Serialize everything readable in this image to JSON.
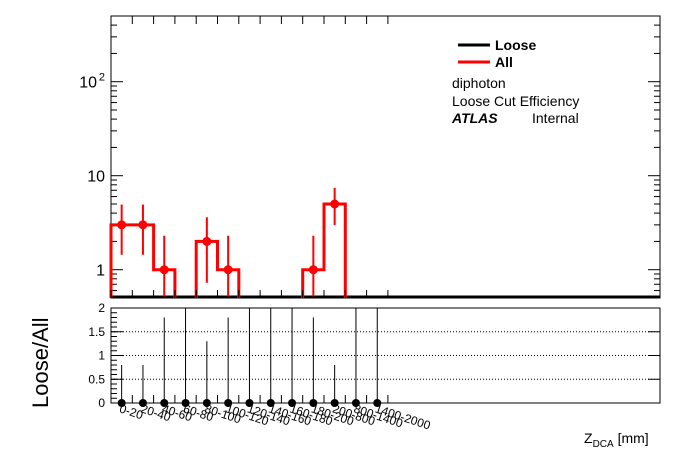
{
  "chart_data": [
    {
      "type": "histogram",
      "panel": "upper",
      "yscale": "log",
      "ylim": [
        0.5,
        500
      ],
      "ytick_labels": [
        {
          "value": 1,
          "label": "1"
        },
        {
          "value": 10,
          "label": "10"
        },
        {
          "value": 100,
          "label": "10",
          "exp": "2"
        }
      ],
      "categories": [
        "0-20",
        "20-40",
        "40-60",
        "60-80",
        "80-100",
        "100-120",
        "120-140",
        "140-160",
        "160-180",
        "180-200",
        "200-800",
        "800-1400",
        "1400-2000"
      ],
      "series": [
        {
          "name": "Loose",
          "color": "#000000",
          "values": [
            0,
            0,
            0,
            0,
            0,
            0,
            0,
            0,
            0,
            0,
            0,
            0,
            0
          ]
        },
        {
          "name": "All",
          "color": "#ff0000",
          "values": [
            3,
            3,
            1,
            0,
            2,
            1,
            0,
            0,
            0,
            1,
            5,
            0,
            0
          ]
        }
      ],
      "legend_position": "top-right",
      "annotations": [
        "diphoton",
        "Loose Cut Efficiency"
      ],
      "atlas_label": {
        "bold": "ATLAS",
        "normal": "Internal"
      }
    },
    {
      "type": "scatter",
      "panel": "lower",
      "ylabel": "Loose/All",
      "xlabel_main": "Z",
      "xlabel_sub": "DCA",
      "xlabel_unit": " [mm]",
      "ylim": [
        0,
        2
      ],
      "yticks": [
        0,
        0.5,
        1,
        1.5,
        2
      ],
      "ytick_labels": [
        "0",
        "0.5",
        "1",
        "1.5",
        "2"
      ],
      "gridlines": [
        0.5,
        1,
        1.5
      ],
      "categories": [
        "0-20",
        "20-40",
        "40-60",
        "60-80",
        "80-100",
        "100-120",
        "120-140",
        "140-160",
        "160-180",
        "180-200",
        "200-800",
        "800-1400",
        "1400-2000"
      ],
      "values": [
        0,
        0,
        0,
        0,
        0,
        0,
        0,
        0,
        0,
        0,
        0,
        0,
        0
      ],
      "err_up": [
        0.8,
        0.8,
        1.8,
        2.0,
        1.3,
        1.8,
        2.0,
        2.0,
        2.0,
        1.8,
        0.8,
        2.0,
        2.0
      ]
    }
  ]
}
